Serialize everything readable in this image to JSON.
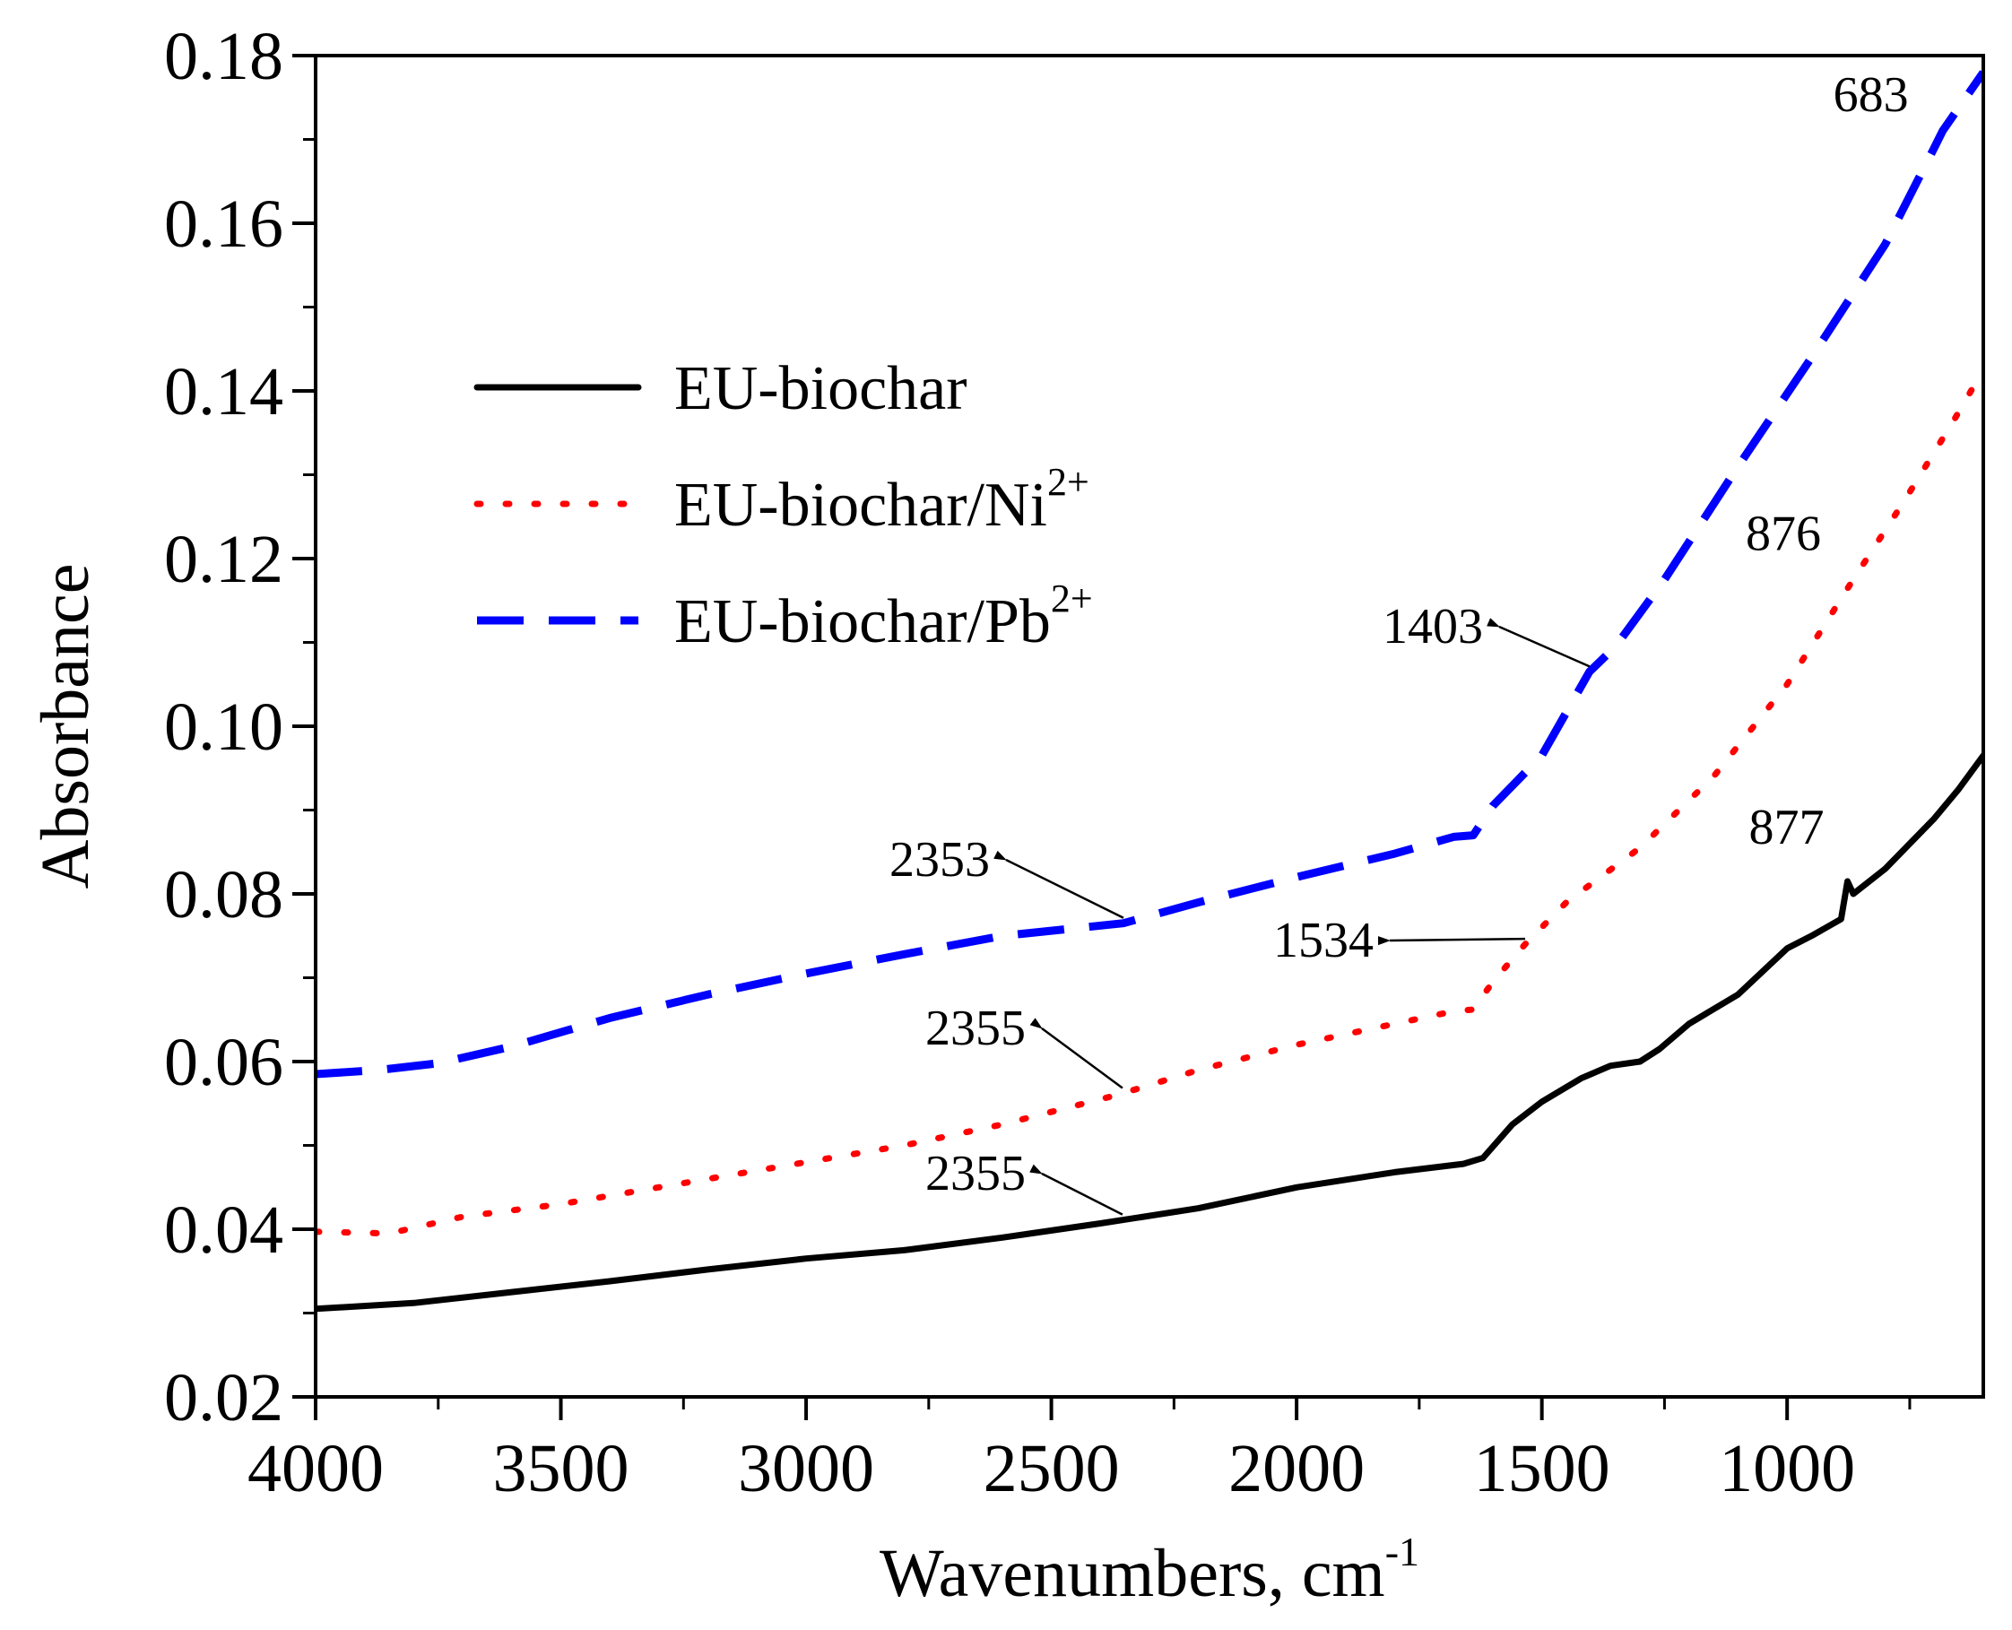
{
  "chart_data": {
    "type": "line",
    "xlabel": "Wavenumbers, cm",
    "xlabel_sup": "-1",
    "ylabel": "Absorbance",
    "xlim": [
      4000,
      600
    ],
    "ylim": [
      0.02,
      0.18
    ],
    "x_reversed": true,
    "grid": false,
    "legend_position": "upper-left",
    "x_ticks": [
      {
        "value": 4000,
        "label": "4000"
      },
      {
        "value": 3500,
        "label": "3500"
      },
      {
        "value": 3000,
        "label": "3000"
      },
      {
        "value": 2500,
        "label": "2500"
      },
      {
        "value": 2000,
        "label": "2000"
      },
      {
        "value": 1500,
        "label": "1500"
      },
      {
        "value": 1000,
        "label": "1000"
      }
    ],
    "y_ticks": [
      {
        "value": 0.02,
        "label": "0.02"
      },
      {
        "value": 0.04,
        "label": "0.04"
      },
      {
        "value": 0.06,
        "label": "0.06"
      },
      {
        "value": 0.08,
        "label": "0.08"
      },
      {
        "value": 0.1,
        "label": "0.10"
      },
      {
        "value": 0.12,
        "label": "0.12"
      },
      {
        "value": 0.14,
        "label": "0.14"
      },
      {
        "value": 0.16,
        "label": "0.16"
      },
      {
        "value": 0.18,
        "label": "0.18"
      }
    ],
    "series": [
      {
        "name": "EU-biochar",
        "label_main": "EU-biochar",
        "label_sup": "",
        "color": "#000000",
        "style": "solid",
        "points": [
          [
            4000,
            0.0305
          ],
          [
            3800,
            0.0312
          ],
          [
            3600,
            0.0325
          ],
          [
            3400,
            0.0338
          ],
          [
            3200,
            0.0352
          ],
          [
            3000,
            0.0365
          ],
          [
            2800,
            0.0375
          ],
          [
            2600,
            0.039
          ],
          [
            2400,
            0.0407
          ],
          [
            2200,
            0.0425
          ],
          [
            2000,
            0.045
          ],
          [
            1800,
            0.0468
          ],
          [
            1660,
            0.0478
          ],
          [
            1620,
            0.0485
          ],
          [
            1560,
            0.0525
          ],
          [
            1500,
            0.0552
          ],
          [
            1420,
            0.058
          ],
          [
            1360,
            0.0595
          ],
          [
            1300,
            0.06
          ],
          [
            1260,
            0.0615
          ],
          [
            1200,
            0.0645
          ],
          [
            1100,
            0.068
          ],
          [
            1000,
            0.0735
          ],
          [
            950,
            0.075
          ],
          [
            890,
            0.077
          ],
          [
            877,
            0.0815
          ],
          [
            865,
            0.08
          ],
          [
            800,
            0.083
          ],
          [
            700,
            0.089
          ],
          [
            650,
            0.0925
          ],
          [
            600,
            0.0965
          ]
        ]
      },
      {
        "name": "EU-biochar/Ni2+",
        "label_main": "EU-biochar/Ni",
        "label_sup": "2+",
        "color": "#ff0000",
        "style": "dotted",
        "points": [
          [
            4000,
            0.0397
          ],
          [
            3850,
            0.0395
          ],
          [
            3700,
            0.0415
          ],
          [
            3500,
            0.043
          ],
          [
            3200,
            0.046
          ],
          [
            3000,
            0.048
          ],
          [
            2800,
            0.05
          ],
          [
            2600,
            0.0525
          ],
          [
            2400,
            0.0555
          ],
          [
            2355,
            0.0562
          ],
          [
            2200,
            0.059
          ],
          [
            2000,
            0.062
          ],
          [
            1800,
            0.0645
          ],
          [
            1680,
            0.066
          ],
          [
            1640,
            0.0662
          ],
          [
            1600,
            0.0695
          ],
          [
            1534,
            0.074
          ],
          [
            1450,
            0.079
          ],
          [
            1300,
            0.0855
          ],
          [
            1150,
            0.094
          ],
          [
            1000,
            0.105
          ],
          [
            876,
            0.1165
          ],
          [
            760,
            0.127
          ],
          [
            660,
            0.1365
          ],
          [
            600,
            0.1425
          ]
        ]
      },
      {
        "name": "EU-biochar/Pb2+",
        "label_main": "EU-biochar/Pb",
        "label_sup": "2+",
        "color": "#0000ff",
        "style": "dashed",
        "points": [
          [
            4000,
            0.0585
          ],
          [
            3870,
            0.059
          ],
          [
            3750,
            0.0598
          ],
          [
            3600,
            0.0618
          ],
          [
            3400,
            0.0652
          ],
          [
            3200,
            0.068
          ],
          [
            3000,
            0.0705
          ],
          [
            2800,
            0.0728
          ],
          [
            2600,
            0.075
          ],
          [
            2353,
            0.0765
          ],
          [
            2200,
            0.079
          ],
          [
            2000,
            0.082
          ],
          [
            1800,
            0.0848
          ],
          [
            1680,
            0.0868
          ],
          [
            1640,
            0.087
          ],
          [
            1600,
            0.0905
          ],
          [
            1500,
            0.0965
          ],
          [
            1403,
            0.1065
          ],
          [
            1350,
            0.1095
          ],
          [
            1250,
            0.1175
          ],
          [
            1100,
            0.131
          ],
          [
            950,
            0.144
          ],
          [
            800,
            0.1575
          ],
          [
            700,
            0.169
          ],
          [
            683,
            0.171
          ],
          [
            600,
            0.178
          ]
        ]
      }
    ],
    "annotations": [
      {
        "label": "683",
        "series": "EU-biochar/Pb2+",
        "x": 683
      },
      {
        "label": "876",
        "series": "EU-biochar/Ni2+",
        "x": 876
      },
      {
        "label": "877",
        "series": "EU-biochar",
        "x": 877
      },
      {
        "label": "1403",
        "series": "EU-biochar/Pb2+",
        "x": 1403
      },
      {
        "label": "1534",
        "series": "EU-biochar/Ni2+",
        "x": 1534
      },
      {
        "label": "2353",
        "series": "EU-biochar/Pb2+",
        "x": 2353
      },
      {
        "label": "2355",
        "series": "EU-biochar/Ni2+",
        "x": 2355
      },
      {
        "label": "2355",
        "series": "EU-biochar",
        "x": 2355
      }
    ]
  }
}
